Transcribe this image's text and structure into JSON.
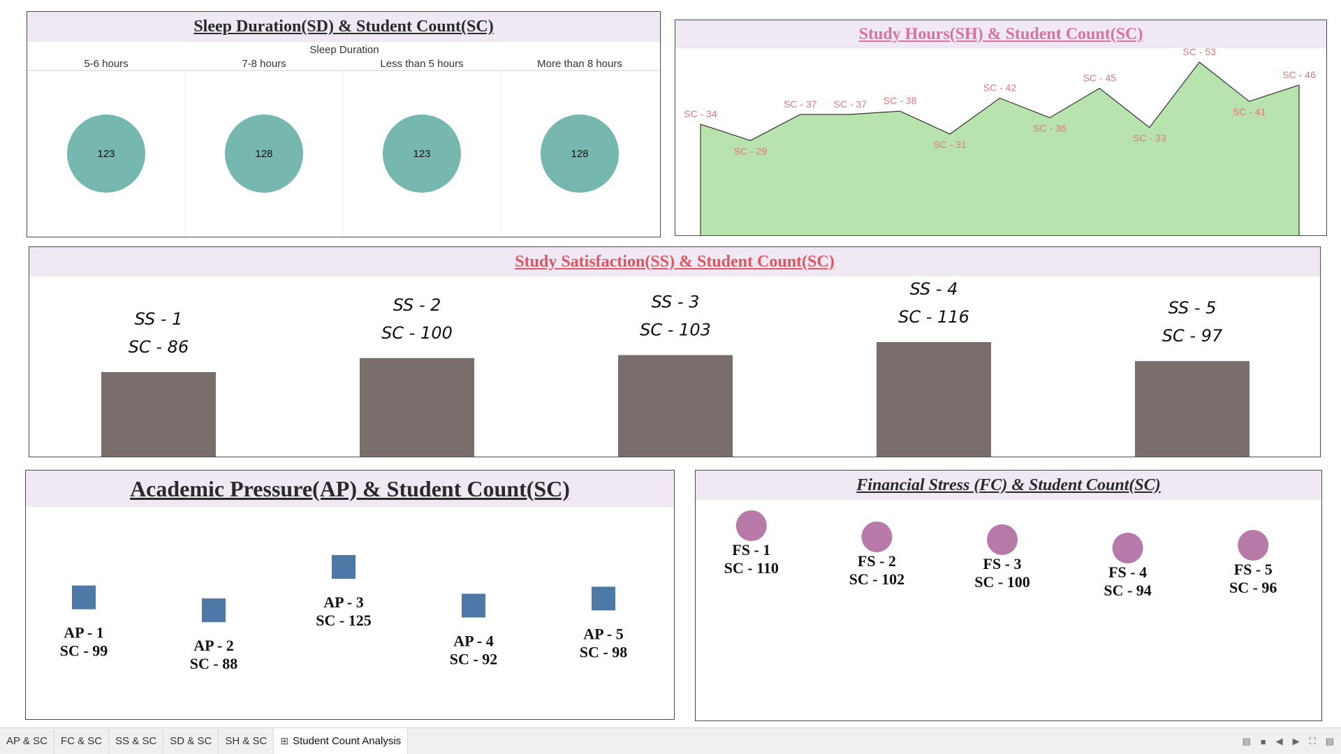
{
  "panels": {
    "sleep": {
      "title": "Sleep Duration(SD) & Student Count(SC)",
      "header": "Sleep Duration"
    },
    "study_hours": {
      "title": "Study Hours(SH) & Student Count(SC)"
    },
    "satisfaction": {
      "title": "Study Satisfaction(SS) & Student Count(SC)"
    },
    "academic": {
      "title": "Academic Pressure(AP) & Student Count(SC)"
    },
    "financial": {
      "title": "Financial Stress (FC) & Student Count(SC)"
    }
  },
  "colors": {
    "header_bg": "#f0e8f3",
    "teal": "#76b7b0",
    "area_fill": "#b8e3af",
    "area_label": "#e0787a",
    "title_red": "#e05561",
    "title_pink": "#d9739b",
    "bar": "#796e6c",
    "square": "#4e79a7",
    "circle": "#b87aa8"
  },
  "chart_data": [
    {
      "type": "scatter",
      "name": "sleep",
      "categories": [
        "5-6 hours",
        "7-8 hours",
        "Less than 5 hours",
        "More than 8 hours"
      ],
      "values": [
        123,
        128,
        123,
        128
      ],
      "labels": [
        "123",
        "128",
        "123",
        "128"
      ]
    },
    {
      "type": "area",
      "name": "study_hours",
      "values": [
        34,
        29,
        37,
        37,
        38,
        31,
        42,
        36,
        45,
        33,
        53,
        41,
        46
      ],
      "labels": [
        "SC - 34",
        "SC - 29",
        "SC - 37",
        "SC - 37",
        "SC - 38",
        "SC - 31",
        "SC - 42",
        "SC - 36",
        "SC - 45",
        "SC - 33",
        "SC - 53",
        "SC - 41",
        "SC - 46"
      ],
      "ylim": [
        0,
        56
      ]
    },
    {
      "type": "bar",
      "name": "satisfaction",
      "categories": [
        "SS - 1",
        "SS - 2",
        "SS - 3",
        "SS - 4",
        "SS - 5"
      ],
      "values": [
        86,
        100,
        103,
        116,
        97
      ],
      "labels": [
        "SC - 86",
        "SC - 100",
        "SC - 103",
        "SC - 116",
        "SC - 97"
      ],
      "ylim": [
        0,
        116
      ]
    },
    {
      "type": "scatter",
      "name": "academic",
      "categories": [
        "AP - 1",
        "AP - 2",
        "AP - 3",
        "AP - 4",
        "AP - 5"
      ],
      "values": [
        99,
        88,
        125,
        92,
        98
      ],
      "labels": [
        "SC - 99",
        "SC - 88",
        "SC - 125",
        "SC - 92",
        "SC - 98"
      ]
    },
    {
      "type": "scatter",
      "name": "financial",
      "categories": [
        "FS - 1",
        "FS - 2",
        "FS - 3",
        "FS - 4",
        "FS - 5"
      ],
      "values": [
        110,
        102,
        100,
        94,
        96
      ],
      "labels": [
        "SC - 110",
        "SC - 102",
        "SC - 100",
        "SC - 94",
        "SC - 96"
      ]
    }
  ],
  "tabs": [
    {
      "label": "AP & SC"
    },
    {
      "label": "FC & SC"
    },
    {
      "label": "SS & SC"
    },
    {
      "label": "SD & SC"
    },
    {
      "label": "SH & SC"
    },
    {
      "label": "Student Count Analysis",
      "icon": "grid-icon"
    }
  ],
  "status_icons": [
    "list-view-icon",
    "grid-view-icon",
    "prev-icon",
    "next-icon",
    "fullscreen-icon",
    "present-icon"
  ]
}
